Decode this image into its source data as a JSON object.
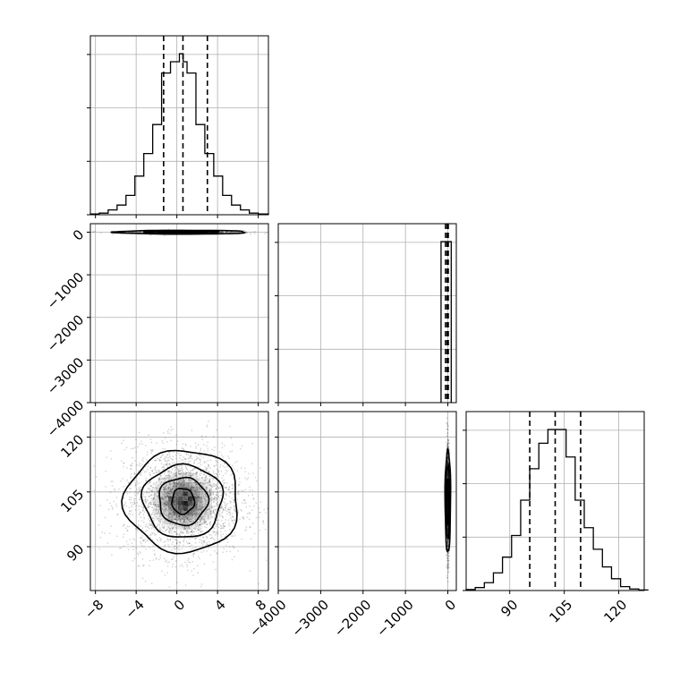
{
  "chart_data": {
    "type": "corner",
    "parameters": [
      {
        "label": "",
        "range": [
          -8.5,
          9
        ],
        "ticks": [
          -8,
          -4,
          0,
          4,
          8
        ]
      },
      {
        "label": "",
        "range": [
          -4000,
          200
        ],
        "ticks": [
          -4000,
          -3000,
          -2000,
          -1000,
          0
        ]
      },
      {
        "label": "",
        "range": [
          78,
          127
        ],
        "ticks": [
          90,
          105,
          120
        ]
      }
    ],
    "tick_labels": {
      "p0_x": [
        "−8",
        "−4",
        "0",
        "4",
        "8"
      ],
      "p1_y": [
        "−4000",
        "−3000",
        "−2000",
        "−1000",
        "0"
      ],
      "p1_x": [
        "−4000",
        "−3000",
        "−2000",
        "−1000",
        "0"
      ],
      "p2_y": [
        "90",
        "105",
        "120"
      ],
      "p2_x": [
        "90",
        "105",
        "120"
      ]
    },
    "histograms": [
      {
        "param": 0,
        "bin_edges": [
          -8.5,
          -7.625,
          -6.75,
          -5.875,
          -5.0,
          -4.125,
          -3.25,
          -2.375,
          -1.5,
          -0.625,
          0.25,
          0.625,
          1.0,
          1.875,
          2.75,
          3.625,
          4.5,
          5.375,
          6.25,
          7.125,
          8.0,
          9.0
        ],
        "counts": [
          0.5,
          1,
          3,
          6,
          12,
          24,
          38,
          56,
          88,
          95,
          100,
          95,
          88,
          56,
          38,
          24,
          12,
          6,
          3,
          1,
          0.5
        ],
        "quantiles": [
          -1.3,
          0.6,
          3.0
        ]
      },
      {
        "param": 1,
        "bin_edges": [
          -160,
          -40,
          80
        ],
        "counts": [
          100,
          100
        ],
        "quantiles": [
          -55,
          -15,
          10
        ]
      },
      {
        "param": 2,
        "bin_edges": [
          78,
          80.5,
          83,
          85.5,
          88,
          90.5,
          93,
          95.5,
          98,
          100.5,
          103,
          105.5,
          108,
          110.5,
          113,
          115.5,
          118,
          120.5,
          123,
          125.5,
          128
        ],
        "counts": [
          0.5,
          1.5,
          4,
          9,
          17,
          28,
          46,
          62,
          75,
          82,
          82,
          68,
          46,
          32,
          21,
          12,
          6,
          2,
          0.8,
          0.3
        ],
        "quantiles": [
          95.5,
          102.5,
          109.5
        ]
      }
    ],
    "contours_2d": [
      {
        "pair": [
          0,
          1
        ],
        "center": [
          0.5,
          0
        ],
        "half_widths": [
          [
            1.2,
            8
          ],
          [
            2.4,
            18
          ],
          [
            3.6,
            28
          ],
          [
            6.5,
            45
          ]
        ]
      },
      {
        "pair": [
          0,
          2
        ],
        "center": [
          0.6,
          102.5
        ],
        "half_widths": [
          [
            1.1,
            3.5
          ],
          [
            2.4,
            6.5
          ],
          [
            3.9,
            10.0
          ],
          [
            5.6,
            14.0
          ]
        ]
      },
      {
        "pair": [
          1,
          2
        ],
        "center": [
          0,
          102.5
        ],
        "half_widths": [
          [
            25,
            6
          ],
          [
            45,
            10
          ],
          [
            65,
            14
          ]
        ]
      }
    ],
    "grid": true,
    "truth_lines": false
  }
}
